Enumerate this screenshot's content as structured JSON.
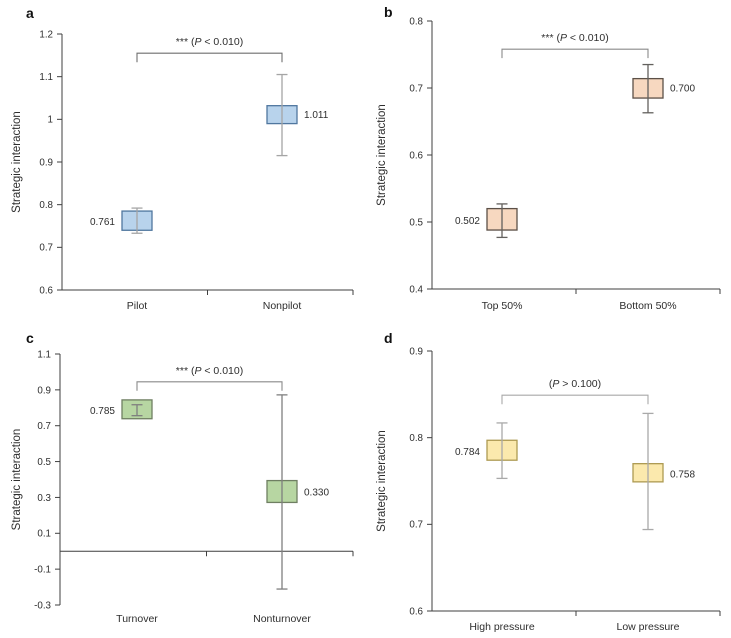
{
  "figure_title": "",
  "chart_data": [
    {
      "letter": "a",
      "type": "box",
      "ylabel": "Strategic interaction",
      "ylim": [
        0.6,
        1.2
      ],
      "yticks": [
        {
          "v": 0.6,
          "label": "0.6"
        },
        {
          "v": 0.7,
          "label": "0.7"
        },
        {
          "v": 0.8,
          "label": "0.8"
        },
        {
          "v": 0.9,
          "label": "0.9"
        },
        {
          "v": 1.0,
          "label": "1"
        },
        {
          "v": 1.1,
          "label": "1.1"
        },
        {
          "v": 1.2,
          "label": "1.2"
        }
      ],
      "categories": [
        "Pilot",
        "Nonpilot"
      ],
      "zero_line": false,
      "significance": {
        "label": "*** (P < 0.010)",
        "bracket_y": 1.155
      },
      "groups": [
        {
          "category": "Pilot",
          "mean": 0.761,
          "mean_label": "0.761",
          "box": [
            0.74,
            0.785
          ],
          "whiskers": [
            0.733,
            0.792
          ],
          "label_side": "left"
        },
        {
          "category": "Nonpilot",
          "mean": 1.011,
          "mean_label": "1.011",
          "box": [
            0.99,
            1.032
          ],
          "whiskers": [
            0.915,
            1.105
          ],
          "label_side": "right"
        }
      ],
      "colors": {
        "box_fill": "#b8d3ec",
        "box_stroke": "#50779f",
        "whisker": "#a5a5a5",
        "bracket": "#6f6f6f"
      }
    },
    {
      "letter": "b",
      "type": "box",
      "ylabel": "Strategic interaction",
      "ylim": [
        0.4,
        0.8
      ],
      "yticks": [
        {
          "v": 0.4,
          "label": "0.4"
        },
        {
          "v": 0.5,
          "label": "0.5"
        },
        {
          "v": 0.6,
          "label": "0.6"
        },
        {
          "v": 0.7,
          "label": "0.7"
        },
        {
          "v": 0.8,
          "label": "0.8"
        }
      ],
      "categories": [
        "Top 50%",
        "Bottom 50%"
      ],
      "zero_line": false,
      "significance": {
        "label": "*** (P < 0.010)",
        "bracket_y": 0.758
      },
      "groups": [
        {
          "category": "Top 50%",
          "mean": 0.502,
          "mean_label": "0.502",
          "box": [
            0.488,
            0.52
          ],
          "whiskers": [
            0.477,
            0.527
          ],
          "label_side": "left"
        },
        {
          "category": "Bottom 50%",
          "mean": 0.7,
          "mean_label": "0.700",
          "box": [
            0.685,
            0.714
          ],
          "whiskers": [
            0.663,
            0.735
          ],
          "label_side": "right"
        }
      ],
      "colors": {
        "box_fill": "#f7d8c0",
        "box_stroke": "#5c5047",
        "whisker": "#63615e",
        "bracket": "#8a8a8a"
      }
    },
    {
      "letter": "c",
      "type": "box",
      "ylabel": "Strategic interaction",
      "ylim": [
        -0.3,
        1.1
      ],
      "yticks": [
        {
          "v": -0.3,
          "label": "-0.3"
        },
        {
          "v": -0.1,
          "label": "-0.1"
        },
        {
          "v": 0.1,
          "label": "0.1"
        },
        {
          "v": 0.3,
          "label": "0.3"
        },
        {
          "v": 0.5,
          "label": "0.5"
        },
        {
          "v": 0.7,
          "label": "0.7"
        },
        {
          "v": 0.9,
          "label": "0.9"
        },
        {
          "v": 1.1,
          "label": "1.1"
        }
      ],
      "categories": [
        "Turnover",
        "Nonturnover"
      ],
      "zero_line": true,
      "significance": {
        "label": "*** (P < 0.010)",
        "bracket_y": 0.945
      },
      "groups": [
        {
          "category": "Turnover",
          "mean": 0.785,
          "mean_label": "0.785",
          "box": [
            0.739,
            0.844
          ],
          "whiskers": [
            0.756,
            0.817
          ],
          "label_side": "left"
        },
        {
          "category": "Nonturnover",
          "mean": 0.33,
          "mean_label": "0.330",
          "box": [
            0.272,
            0.394
          ],
          "whiskers": [
            -0.211,
            0.872
          ],
          "label_side": "right"
        }
      ],
      "colors": {
        "box_fill": "#b7d6a2",
        "box_stroke": "#6f7f62",
        "whisker": "#7f7f7f",
        "bracket": "#8a8a8a"
      }
    },
    {
      "letter": "d",
      "type": "box",
      "ylabel": "Strategic interaction",
      "ylim": [
        0.6,
        0.9
      ],
      "yticks": [
        {
          "v": 0.6,
          "label": "0.6"
        },
        {
          "v": 0.7,
          "label": "0.7"
        },
        {
          "v": 0.8,
          "label": "0.8"
        },
        {
          "v": 0.9,
          "label": "0.9"
        }
      ],
      "categories": [
        "High pressure",
        "Low pressure"
      ],
      "zero_line": false,
      "significance": {
        "label": "(P > 0.100)",
        "bracket_y": 0.849
      },
      "groups": [
        {
          "category": "High pressure",
          "mean": 0.784,
          "mean_label": "0.784",
          "box": [
            0.774,
            0.797
          ],
          "whiskers": [
            0.753,
            0.817
          ],
          "label_side": "left"
        },
        {
          "category": "Low pressure",
          "mean": 0.758,
          "mean_label": "0.758",
          "box": [
            0.749,
            0.77
          ],
          "whiskers": [
            0.694,
            0.828
          ],
          "label_side": "right"
        }
      ],
      "colors": {
        "box_fill": "#fbe9ad",
        "box_stroke": "#ad9a52",
        "whisker": "#a9a9a9",
        "bracket": "#a8a8a8"
      }
    }
  ],
  "style": {
    "text_color": "#2e2e2e",
    "spine_color": "#3f3f3f",
    "background": "#ffffff"
  }
}
